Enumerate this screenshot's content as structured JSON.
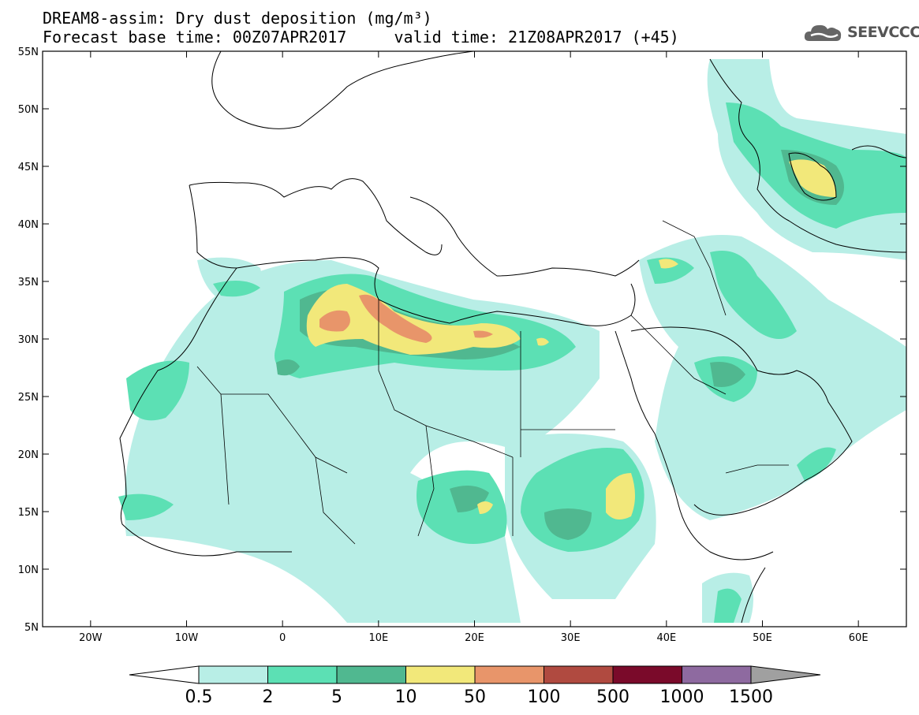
{
  "title_line1": "DREAM8-assim: Dry dust deposition (mg/m³)",
  "title_line2": "Forecast base time: 00Z07APR2017     valid time: 21Z08APR2017 (+45)",
  "logo": {
    "icon": "cloud-icon",
    "text": "SEEVCCC"
  },
  "map": {
    "lon_range": [
      -25,
      65
    ],
    "lat_range": [
      5,
      55
    ],
    "x_ticks": [
      "20W",
      "10W",
      "0",
      "10E",
      "20E",
      "30E",
      "40E",
      "50E",
      "60E"
    ],
    "y_ticks": [
      "55N",
      "50N",
      "45N",
      "40N",
      "35N",
      "30N",
      "25N",
      "20N",
      "15N",
      "10N",
      "5N"
    ]
  },
  "colorbar": {
    "colors": [
      "#b8eee6",
      "#5ce0b4",
      "#50b890",
      "#f2e87a",
      "#e8956a",
      "#b04a40",
      "#7a0a2a",
      "#8e6aa0",
      "#a0a0a0"
    ],
    "labels": [
      "0.5",
      "2",
      "5",
      "10",
      "50",
      "100",
      "500",
      "1000",
      "1500"
    ]
  }
}
